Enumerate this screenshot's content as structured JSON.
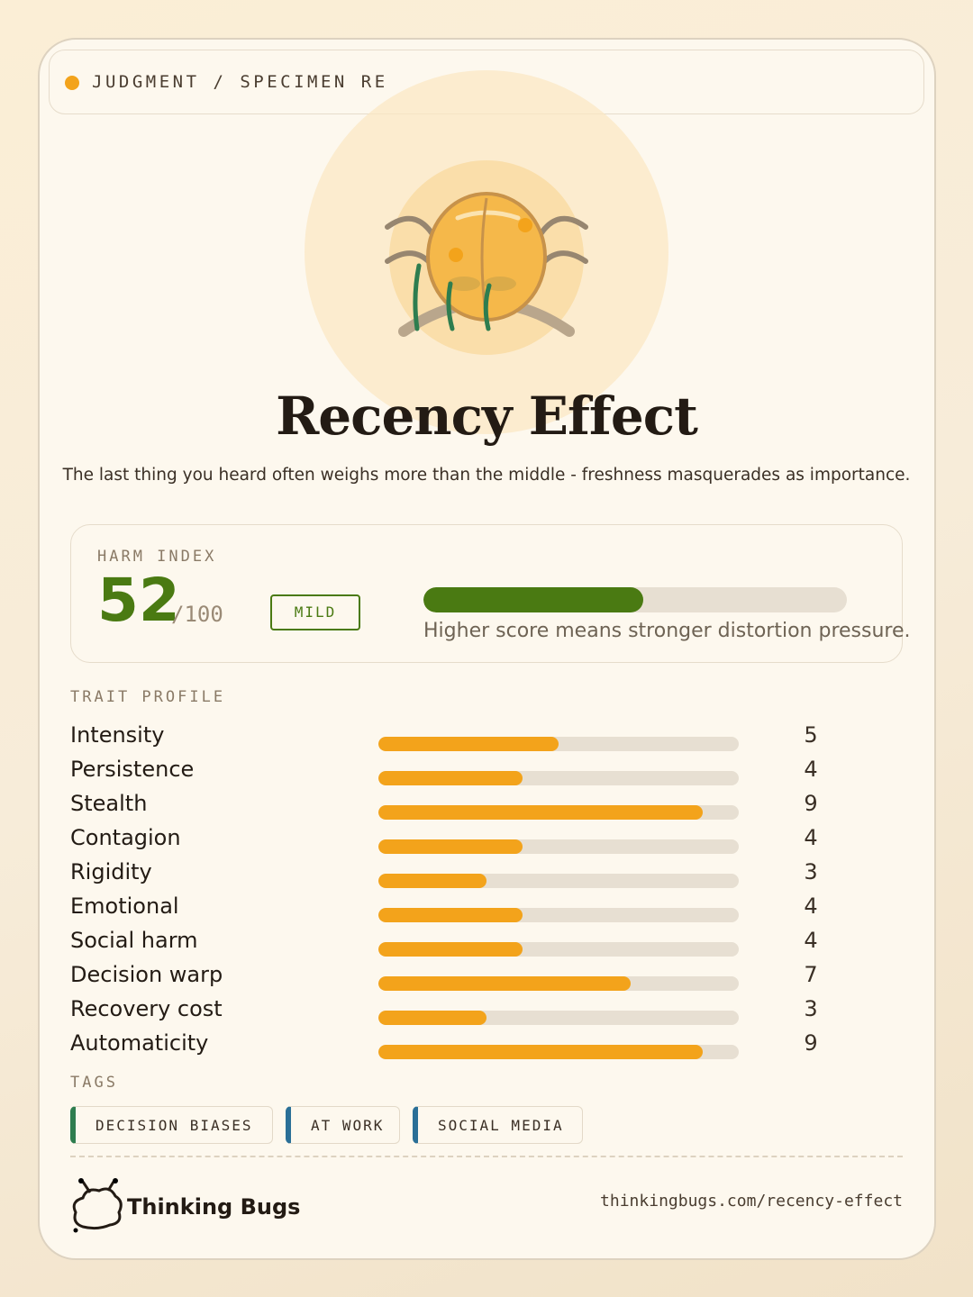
{
  "header": {
    "label": "JUDGMENT / SPECIMEN RE"
  },
  "title": "Recency Effect",
  "description": "The last thing you heard often weighs more than the middle - freshness masquerades as importance.",
  "harm": {
    "label": "HARM INDEX",
    "score": 52,
    "max": {
      "value": 100,
      "label": "/100"
    },
    "severity": "MILD",
    "note": "Higher score means stronger distortion pressure.",
    "color": "#4a7a12"
  },
  "traits": {
    "label": "TRAIT PROFILE",
    "scale": [
      0,
      10
    ],
    "color": "#f3a31b",
    "items": [
      {
        "name": "Intensity",
        "value": 5
      },
      {
        "name": "Persistence",
        "value": 4
      },
      {
        "name": "Stealth",
        "value": 9
      },
      {
        "name": "Contagion",
        "value": 4
      },
      {
        "name": "Rigidity",
        "value": 3
      },
      {
        "name": "Emotional",
        "value": 4
      },
      {
        "name": "Social harm",
        "value": 4
      },
      {
        "name": "Decision warp",
        "value": 7
      },
      {
        "name": "Recovery cost",
        "value": 3
      },
      {
        "name": "Automaticity",
        "value": 9
      }
    ]
  },
  "tags": {
    "label": "TAGS",
    "items": [
      {
        "name": "DECISION BIASES",
        "color": "#2e7d4f"
      },
      {
        "name": "AT WORK",
        "color": "#2a6f97"
      },
      {
        "name": "SOCIAL MEDIA",
        "color": "#2a6f97"
      }
    ]
  },
  "footer": {
    "brand": "Thinking Bugs",
    "url": "thinkingbugs.com/recency-effect"
  }
}
